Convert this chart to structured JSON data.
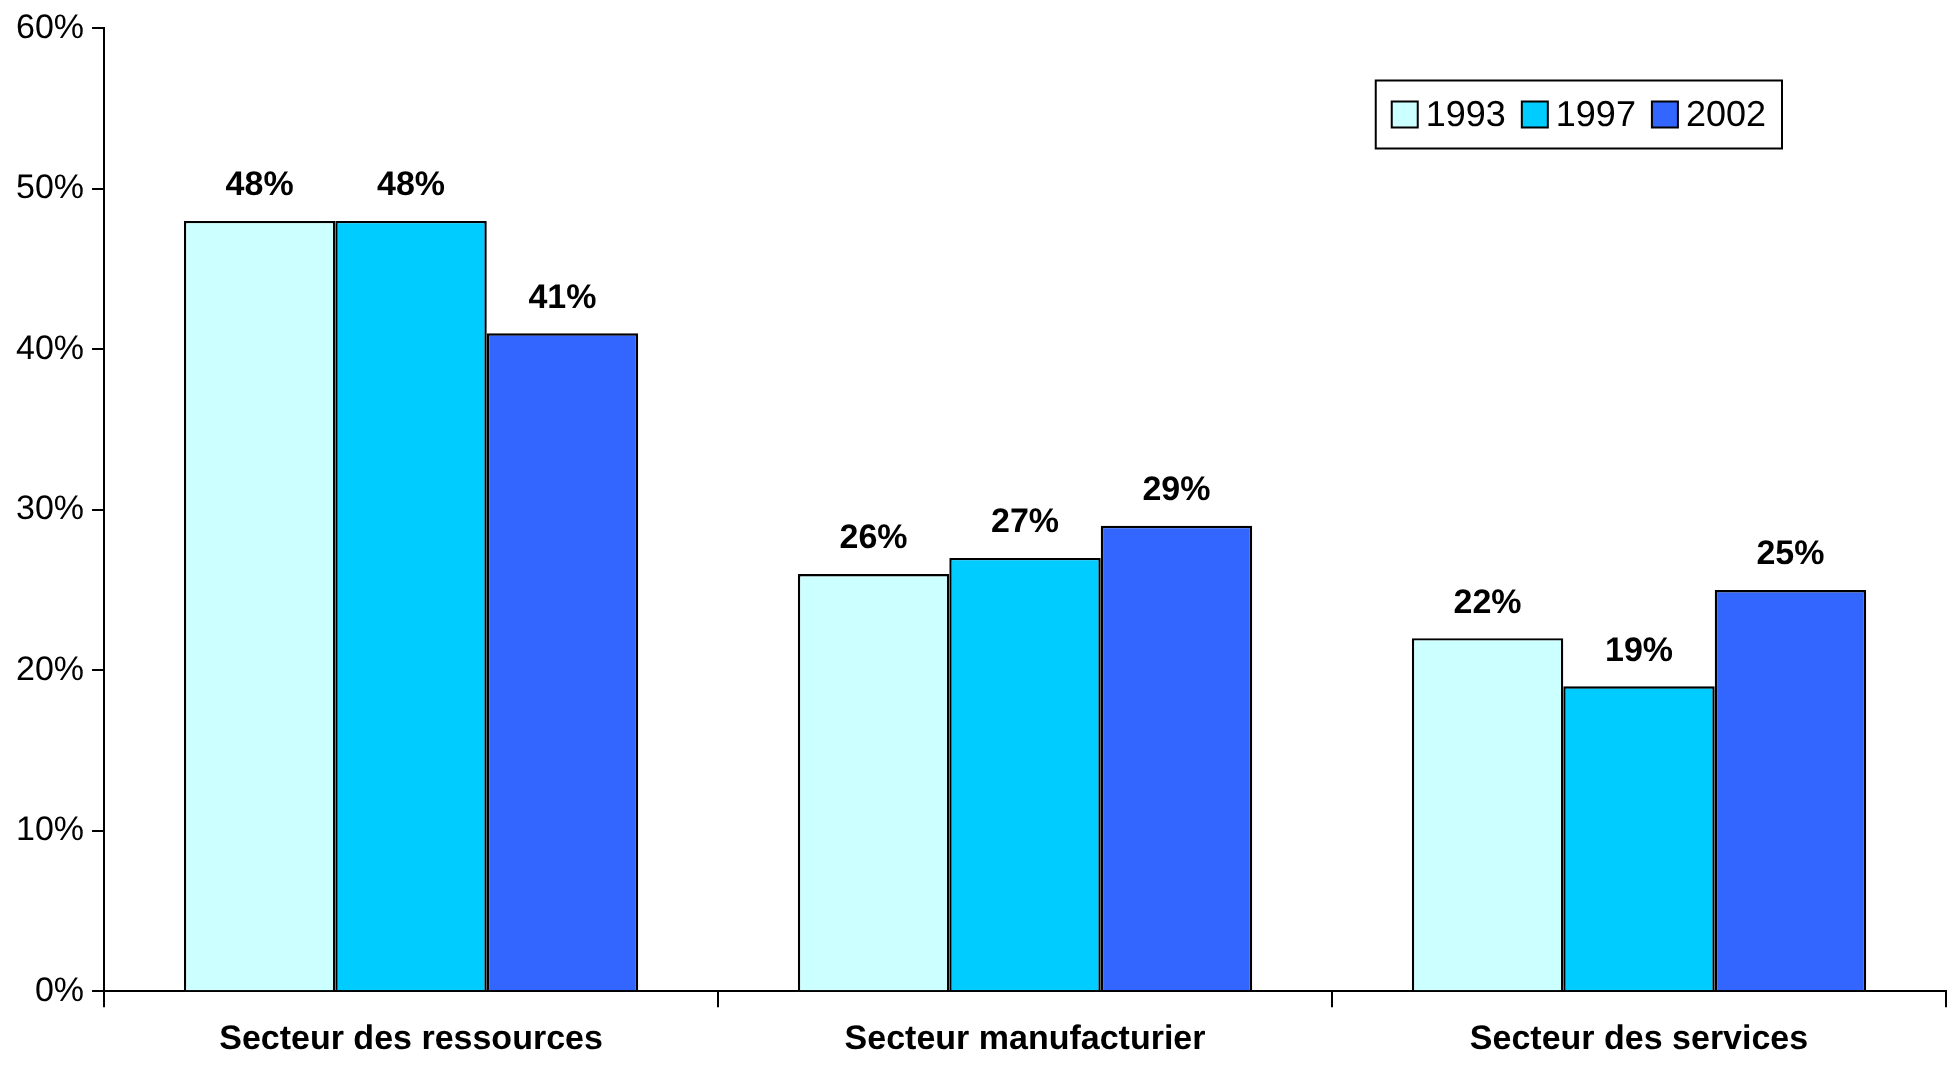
{
  "chart_data": {
    "type": "bar",
    "categories": [
      "Secteur des ressources",
      "Secteur manufacturier",
      "Secteur des services"
    ],
    "series": [
      {
        "name": "1993",
        "color": "#ccffff",
        "values": [
          48,
          26,
          22
        ],
        "value_labels": [
          "48%",
          "26%",
          "22%"
        ]
      },
      {
        "name": "1997",
        "color": "#00ccff",
        "values": [
          48,
          27,
          19
        ],
        "value_labels": [
          "48%",
          "27%",
          "19%"
        ]
      },
      {
        "name": "2002",
        "color": "#3366ff",
        "values": [
          41,
          29,
          25
        ],
        "value_labels": [
          "41%",
          "29%",
          "25%"
        ]
      }
    ],
    "ylim": [
      0,
      60
    ],
    "yticks": [
      {
        "value": 0,
        "label": "0%"
      },
      {
        "value": 10,
        "label": "10%"
      },
      {
        "value": 20,
        "label": "20%"
      },
      {
        "value": 30,
        "label": "30%"
      },
      {
        "value": 40,
        "label": "40%"
      },
      {
        "value": 50,
        "label": "50%"
      },
      {
        "value": 60,
        "label": "60%"
      }
    ],
    "grid": false,
    "legend": "top right"
  }
}
